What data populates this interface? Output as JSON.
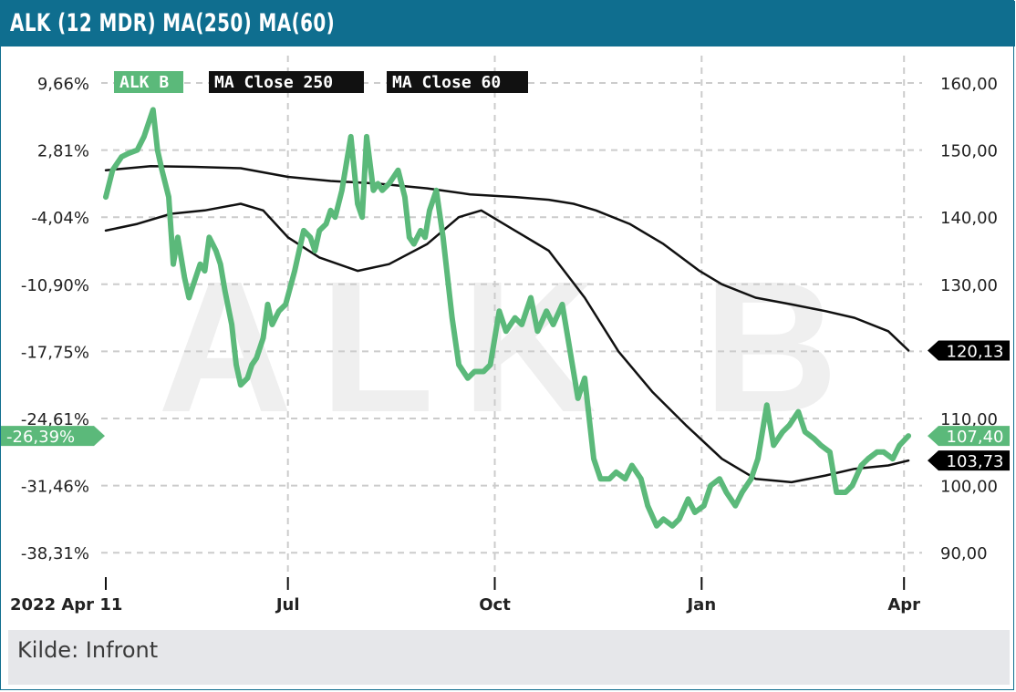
{
  "header": {
    "title": "ALK (12 MDR) MA(250) MA(60)"
  },
  "footer": {
    "source": "Kilde: Infront"
  },
  "colors": {
    "header_bg": "#0f6e8f",
    "price": "#5bb97a",
    "ma": "#111111",
    "grid": "#cccccc",
    "watermark": "#efefef"
  },
  "chart_data": {
    "type": "line",
    "watermark": "ALK B",
    "x_ticks": [
      {
        "label": "2022 Apr 11",
        "date": "2022-04-11"
      },
      {
        "label": "Jul",
        "date": "2022-07-01"
      },
      {
        "label": "Oct",
        "date": "2022-10-01"
      },
      {
        "label": "Jan",
        "date": "2023-01-01"
      },
      {
        "label": "Apr",
        "date": "2023-04-01"
      }
    ],
    "y_right": {
      "min": 83,
      "max": 166,
      "ticks": [
        "160,00",
        "150,00",
        "140,00",
        "130,00",
        "120,00",
        "110,00",
        "100,00",
        "90,00"
      ],
      "tick_values": [
        160,
        150,
        140,
        130,
        120,
        110,
        100,
        90
      ]
    },
    "y_left": {
      "ticks": [
        "9,66%",
        "2,81%",
        "-4,04%",
        "-10,90%",
        "-17,75%",
        "-24,61%",
        "-31,46%",
        "-38,31%"
      ],
      "tick_values": [
        160,
        150,
        140,
        130,
        120,
        110,
        100,
        90
      ]
    },
    "grid": true,
    "legend": {
      "placement": "top-left",
      "entries": [
        "ALK B",
        "MA Close 250",
        "MA Close 60"
      ]
    },
    "series": [
      {
        "name": "ALK B",
        "color": "#5bb97a",
        "last_label": "107,40",
        "last_pct_label": "-26,39%",
        "points": [
          [
            "2022-04-11",
            143
          ],
          [
            "2022-04-14",
            147
          ],
          [
            "2022-04-18",
            149
          ],
          [
            "2022-04-21",
            149.5
          ],
          [
            "2022-04-25",
            150
          ],
          [
            "2022-04-28",
            152
          ],
          [
            "2022-05-02",
            156
          ],
          [
            "2022-05-04",
            150
          ],
          [
            "2022-05-06",
            147
          ],
          [
            "2022-05-09",
            143
          ],
          [
            "2022-05-11",
            133
          ],
          [
            "2022-05-13",
            137
          ],
          [
            "2022-05-16",
            131
          ],
          [
            "2022-05-18",
            128
          ],
          [
            "2022-05-20",
            130
          ],
          [
            "2022-05-23",
            133
          ],
          [
            "2022-05-25",
            132
          ],
          [
            "2022-05-27",
            137
          ],
          [
            "2022-05-30",
            135
          ],
          [
            "2022-06-01",
            133
          ],
          [
            "2022-06-03",
            129
          ],
          [
            "2022-06-06",
            124
          ],
          [
            "2022-06-08",
            118
          ],
          [
            "2022-06-10",
            115
          ],
          [
            "2022-06-13",
            116
          ],
          [
            "2022-06-15",
            118
          ],
          [
            "2022-06-17",
            119
          ],
          [
            "2022-06-20",
            122
          ],
          [
            "2022-06-22",
            127
          ],
          [
            "2022-06-24",
            124
          ],
          [
            "2022-06-27",
            126
          ],
          [
            "2022-06-30",
            127
          ],
          [
            "2022-07-04",
            132
          ],
          [
            "2022-07-06",
            135
          ],
          [
            "2022-07-08",
            138
          ],
          [
            "2022-07-11",
            137
          ],
          [
            "2022-07-13",
            135
          ],
          [
            "2022-07-15",
            138
          ],
          [
            "2022-07-18",
            139
          ],
          [
            "2022-07-20",
            141
          ],
          [
            "2022-07-22",
            140
          ],
          [
            "2022-07-25",
            144
          ],
          [
            "2022-07-27",
            148
          ],
          [
            "2022-07-29",
            152
          ],
          [
            "2022-08-01",
            142
          ],
          [
            "2022-08-03",
            140
          ],
          [
            "2022-08-05",
            152
          ],
          [
            "2022-08-08",
            144
          ],
          [
            "2022-08-10",
            145
          ],
          [
            "2022-08-12",
            144
          ],
          [
            "2022-08-15",
            145
          ],
          [
            "2022-08-17",
            146
          ],
          [
            "2022-08-19",
            147
          ],
          [
            "2022-08-22",
            143
          ],
          [
            "2022-08-24",
            137
          ],
          [
            "2022-08-26",
            136
          ],
          [
            "2022-08-29",
            138
          ],
          [
            "2022-08-31",
            137
          ],
          [
            "2022-09-02",
            141
          ],
          [
            "2022-09-05",
            144
          ],
          [
            "2022-09-08",
            137
          ],
          [
            "2022-09-12",
            125
          ],
          [
            "2022-09-15",
            118
          ],
          [
            "2022-09-19",
            116
          ],
          [
            "2022-09-22",
            117
          ],
          [
            "2022-09-26",
            117
          ],
          [
            "2022-09-29",
            118
          ],
          [
            "2022-10-03",
            126
          ],
          [
            "2022-10-06",
            123
          ],
          [
            "2022-10-10",
            125
          ],
          [
            "2022-10-13",
            124
          ],
          [
            "2022-10-17",
            128
          ],
          [
            "2022-10-20",
            123
          ],
          [
            "2022-10-24",
            126
          ],
          [
            "2022-10-27",
            124
          ],
          [
            "2022-10-31",
            127
          ],
          [
            "2022-11-03",
            121
          ],
          [
            "2022-11-07",
            113
          ],
          [
            "2022-11-10",
            116
          ],
          [
            "2022-11-14",
            104
          ],
          [
            "2022-11-17",
            101
          ],
          [
            "2022-11-21",
            101
          ],
          [
            "2022-11-24",
            102
          ],
          [
            "2022-11-28",
            101
          ],
          [
            "2022-12-01",
            103
          ],
          [
            "2022-12-05",
            101
          ],
          [
            "2022-12-08",
            97
          ],
          [
            "2022-12-12",
            94
          ],
          [
            "2022-12-15",
            95
          ],
          [
            "2022-12-19",
            94
          ],
          [
            "2022-12-22",
            95
          ],
          [
            "2022-12-26",
            98
          ],
          [
            "2022-12-29",
            96
          ],
          [
            "2023-01-02",
            97
          ],
          [
            "2023-01-05",
            100
          ],
          [
            "2023-01-09",
            101
          ],
          [
            "2023-01-12",
            99
          ],
          [
            "2023-01-16",
            97
          ],
          [
            "2023-01-19",
            99
          ],
          [
            "2023-01-23",
            101
          ],
          [
            "2023-01-26",
            104
          ],
          [
            "2023-01-30",
            112
          ],
          [
            "2023-02-02",
            106
          ],
          [
            "2023-02-06",
            108
          ],
          [
            "2023-02-09",
            109
          ],
          [
            "2023-02-13",
            111
          ],
          [
            "2023-02-16",
            108
          ],
          [
            "2023-02-20",
            107
          ],
          [
            "2023-02-23",
            106
          ],
          [
            "2023-02-27",
            105
          ],
          [
            "2023-03-02",
            99
          ],
          [
            "2023-03-06",
            99
          ],
          [
            "2023-03-09",
            100
          ],
          [
            "2023-03-13",
            103
          ],
          [
            "2023-03-16",
            104
          ],
          [
            "2023-03-20",
            105
          ],
          [
            "2023-03-23",
            105
          ],
          [
            "2023-03-27",
            104
          ],
          [
            "2023-03-30",
            106
          ],
          [
            "2023-04-03",
            107.4
          ]
        ]
      },
      {
        "name": "MA Close 250",
        "color": "#111111",
        "last_label": "120,13",
        "points": [
          [
            "2022-04-11",
            147
          ],
          [
            "2022-05-01",
            147.6
          ],
          [
            "2022-05-20",
            147.5
          ],
          [
            "2022-06-10",
            147.3
          ],
          [
            "2022-07-01",
            146
          ],
          [
            "2022-07-20",
            145.4
          ],
          [
            "2022-08-10",
            145
          ],
          [
            "2022-09-01",
            144.3
          ],
          [
            "2022-09-20",
            143.4
          ],
          [
            "2022-10-10",
            143
          ],
          [
            "2022-10-25",
            142.6
          ],
          [
            "2022-11-05",
            142
          ],
          [
            "2022-11-15",
            141
          ],
          [
            "2022-11-30",
            139
          ],
          [
            "2022-12-15",
            136
          ],
          [
            "2022-12-31",
            132
          ],
          [
            "2023-01-10",
            130
          ],
          [
            "2023-01-25",
            128
          ],
          [
            "2023-02-10",
            127
          ],
          [
            "2023-02-25",
            126
          ],
          [
            "2023-03-10",
            125
          ],
          [
            "2023-03-25",
            123
          ],
          [
            "2023-04-03",
            120.13
          ]
        ]
      },
      {
        "name": "MA Close 60",
        "color": "#111111",
        "last_label": "103,73",
        "points": [
          [
            "2022-04-11",
            138
          ],
          [
            "2022-04-25",
            139
          ],
          [
            "2022-05-10",
            140.5
          ],
          [
            "2022-05-25",
            141
          ],
          [
            "2022-06-10",
            142
          ],
          [
            "2022-06-20",
            141
          ],
          [
            "2022-07-01",
            137
          ],
          [
            "2022-07-15",
            134
          ],
          [
            "2022-08-01",
            132
          ],
          [
            "2022-08-15",
            133
          ],
          [
            "2022-09-01",
            136
          ],
          [
            "2022-09-15",
            140
          ],
          [
            "2022-09-25",
            141
          ],
          [
            "2022-10-10",
            138
          ],
          [
            "2022-10-25",
            135
          ],
          [
            "2022-11-10",
            128
          ],
          [
            "2022-11-25",
            120
          ],
          [
            "2022-12-10",
            114
          ],
          [
            "2022-12-25",
            109
          ],
          [
            "2023-01-10",
            104
          ],
          [
            "2023-01-25",
            101
          ],
          [
            "2023-02-10",
            100.5
          ],
          [
            "2023-02-25",
            101.5
          ],
          [
            "2023-03-10",
            102.5
          ],
          [
            "2023-03-25",
            103
          ],
          [
            "2023-04-03",
            103.73
          ]
        ]
      }
    ]
  }
}
